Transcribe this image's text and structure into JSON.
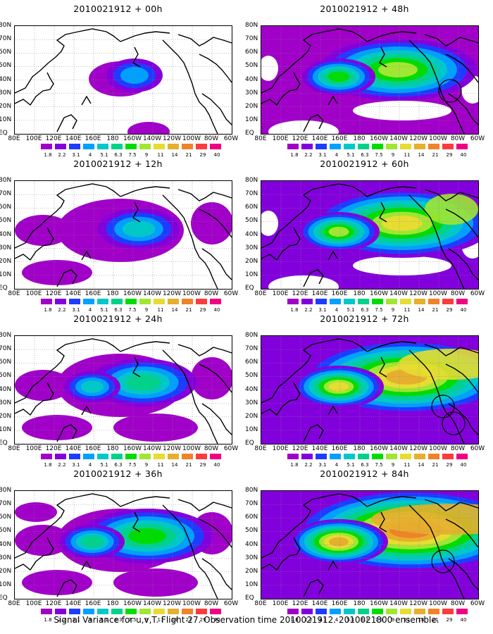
{
  "caption": "Signal Variance for u,v,T. Flight 27. Observation time 2010021912. 2010021800 ensemble.",
  "map_axes": {
    "x_ticks": [
      "80E",
      "100E",
      "120E",
      "140E",
      "160E",
      "180",
      "160W",
      "140W",
      "120W",
      "100W",
      "80W",
      "60W"
    ],
    "y_ticks": [
      "80N",
      "70N",
      "60N",
      "50N",
      "40N",
      "30N",
      "20N",
      "10N",
      "EQ"
    ]
  },
  "colorbar": {
    "levels": [
      "1.8",
      "2.2",
      "3.1",
      "4",
      "5.1",
      "6.3",
      "7.5",
      "9",
      "11",
      "14",
      "21",
      "29",
      "40"
    ],
    "colors": [
      "#a000c8",
      "#8200dc",
      "#1e3cff",
      "#00a0ff",
      "#00c8c8",
      "#00d28c",
      "#00dc00",
      "#a0e632",
      "#e6dc32",
      "#e6af2d",
      "#f08228",
      "#fa3c3c",
      "#f00082"
    ]
  },
  "panels": [
    {
      "title": "2010021912 + 00h",
      "level": 0
    },
    {
      "title": "2010021912 + 48h",
      "level": 4
    },
    {
      "title": "2010021912 + 12h",
      "level": 1
    },
    {
      "title": "2010021912 + 60h",
      "level": 5
    },
    {
      "title": "2010021912 + 24h",
      "level": 2
    },
    {
      "title": "2010021912 + 72h",
      "level": 6
    },
    {
      "title": "2010021912 + 36h",
      "level": 3
    },
    {
      "title": "2010021912 + 84h",
      "level": 7
    }
  ]
}
